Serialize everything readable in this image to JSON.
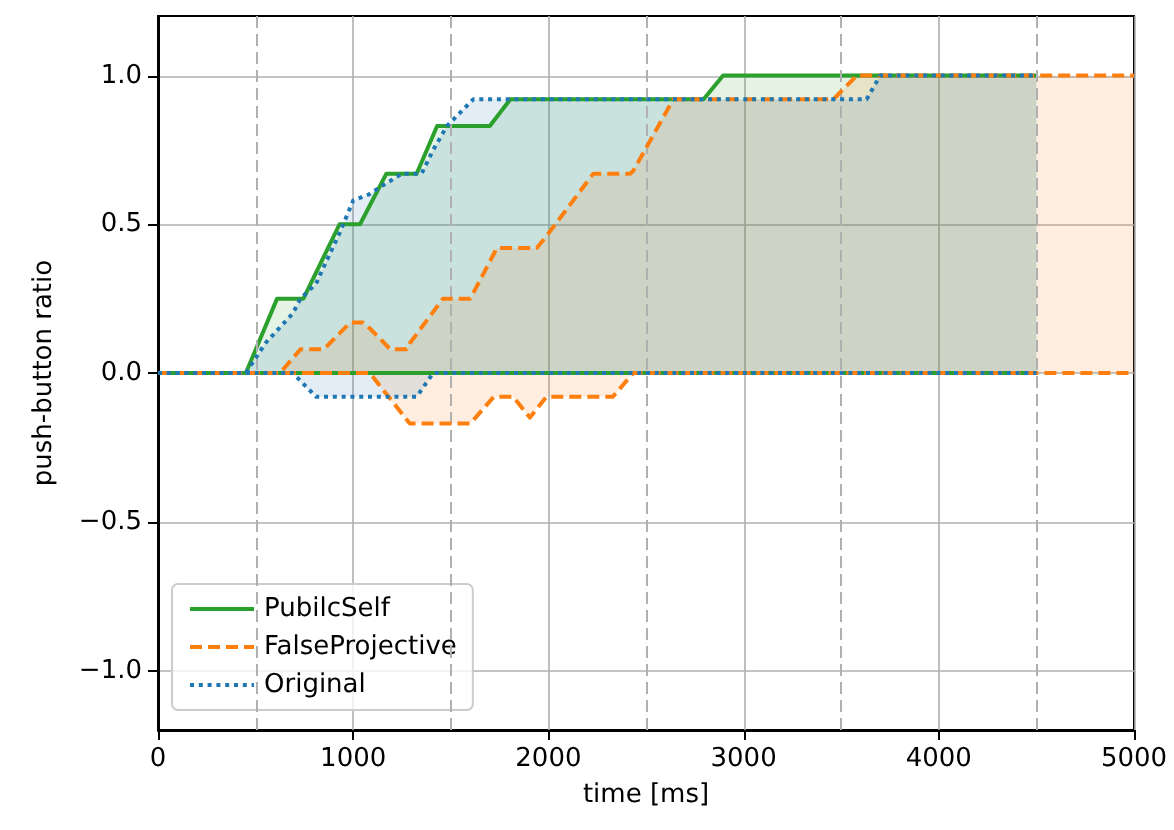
{
  "chart_data": {
    "type": "line",
    "xlabel": "time [ms]",
    "ylabel": "push-button ratio",
    "xlim": [
      0,
      5000
    ],
    "xticks": [
      0,
      1000,
      2000,
      3000,
      4000,
      5000
    ],
    "ylim": [
      -1.2,
      1.2
    ],
    "yticks": [
      {
        "value": -1.0,
        "label": "−1.0"
      },
      {
        "value": -0.5,
        "label": "−0.5"
      },
      {
        "value": 0,
        "label": "0.0"
      },
      {
        "value": 0.5,
        "label": "0.5"
      },
      {
        "value": 1.0,
        "label": "1.0"
      }
    ],
    "grid": true,
    "legend": "bottom left",
    "marker": "none",
    "ref_lines": [
      {
        "axis": "x",
        "value": 500,
        "line_style": "dashed"
      },
      {
        "axis": "x",
        "value": 1500,
        "line_style": "dashed"
      },
      {
        "axis": "x",
        "value": 2500,
        "line_style": "dashed"
      },
      {
        "axis": "x",
        "value": 3500,
        "line_style": "dashed"
      },
      {
        "axis": "x",
        "value": 4500,
        "line_style": "dashed"
      }
    ],
    "series": [
      {
        "name": "PubilcSelf",
        "color": "#2ca02c",
        "line_style": "solid",
        "x": [
          0,
          450,
          610,
          745,
          930,
          1035,
          1170,
          1325,
          1430,
          1700,
          1805,
          2795,
          2895,
          4500
        ],
        "values": [
          0,
          0,
          0.25,
          0.25,
          0.5,
          0.5,
          0.67,
          0.67,
          0.83,
          0.83,
          0.92,
          0.92,
          1.0,
          1.0
        ],
        "upper": [
          0,
          0,
          0.25,
          0.25,
          0.5,
          0.5,
          0.67,
          0.67,
          0.83,
          0.83,
          0.92,
          0.92,
          1.0,
          1.0
        ],
        "lower": [
          0,
          0,
          0,
          0,
          0,
          0,
          0,
          0,
          0,
          0,
          0,
          0,
          0,
          0
        ]
      },
      {
        "color": "#2ca02c",
        "line_style": "solid",
        "x": [
          0,
          4500
        ],
        "values": [
          0,
          0
        ]
      },
      {
        "name": "FalseProjective",
        "color": "#ff7f0e",
        "line_style": "dashed",
        "x": [
          0,
          625,
          730,
          850,
          985,
          1050,
          1085,
          1190,
          1275,
          1290,
          1460,
          1600,
          1720,
          1735,
          1820,
          1905,
          1940,
          1990,
          2230,
          2330,
          2420,
          2435,
          2640,
          3460,
          3580,
          5000
        ],
        "values": [
          0,
          0,
          0.08,
          0.08,
          0.17,
          0.17,
          0.15,
          0.08,
          0.08,
          0.1,
          0.25,
          0.25,
          0.4,
          0.42,
          0.42,
          0.42,
          0.42,
          0.46,
          0.67,
          0.67,
          0.67,
          0.68,
          0.92,
          0.92,
          1.0,
          1.0
        ],
        "upper": [
          0,
          0,
          0.08,
          0.08,
          0.17,
          0.17,
          0.15,
          0.08,
          0.08,
          0.1,
          0.25,
          0.25,
          0.4,
          0.42,
          0.42,
          0.42,
          0.42,
          0.46,
          0.67,
          0.67,
          0.67,
          0.68,
          0.92,
          0.92,
          1.0,
          1.0
        ],
        "lower": [
          0,
          0,
          0,
          0,
          0,
          0,
          0,
          -0.09,
          -0.16,
          -0.17,
          -0.17,
          -0.17,
          -0.08,
          -0.08,
          -0.08,
          -0.15,
          -0.12,
          -0.08,
          -0.08,
          -0.08,
          -0.01,
          0,
          0,
          0,
          0,
          0
        ]
      },
      {
        "color": "#ff7f0e",
        "line_style": "dashed",
        "x": [
          0,
          1085,
          1290,
          1600,
          1720,
          1820,
          1905,
          1990,
          2330,
          2435,
          5000
        ],
        "values": [
          0,
          0,
          -0.17,
          -0.17,
          -0.08,
          -0.08,
          -0.15,
          -0.08,
          -0.08,
          0,
          0
        ]
      },
      {
        "name": "Original",
        "color": "#1f77b4",
        "line_style": "dotted",
        "x": [
          0,
          450,
          550,
          690,
          730,
          810,
          830,
          930,
          1000,
          1080,
          1150,
          1250,
          1325,
          1350,
          1410,
          1480,
          1615,
          3630,
          3700,
          4500
        ],
        "values": [
          0,
          0,
          0.1,
          0.2,
          0.25,
          0.3,
          0.33,
          0.47,
          0.58,
          0.6,
          0.63,
          0.67,
          0.67,
          0.67,
          0.75,
          0.83,
          0.92,
          0.92,
          1.0,
          1.0
        ],
        "upper": [
          0,
          0,
          0.1,
          0.2,
          0.25,
          0.3,
          0.33,
          0.47,
          0.58,
          0.6,
          0.63,
          0.67,
          0.67,
          0.67,
          0.75,
          0.83,
          0.92,
          0.92,
          1.0,
          1.0
        ],
        "lower": [
          0,
          0,
          0,
          0,
          -0.03,
          -0.08,
          -0.08,
          -0.08,
          -0.08,
          -0.08,
          -0.08,
          -0.08,
          -0.08,
          -0.06,
          0,
          0,
          0,
          0,
          0,
          0
        ]
      },
      {
        "color": "#1f77b4",
        "line_style": "dotted",
        "x": [
          0,
          690,
          810,
          1325,
          1410,
          4500
        ],
        "values": [
          0,
          0,
          -0.08,
          -0.08,
          0,
          0
        ]
      }
    ]
  }
}
